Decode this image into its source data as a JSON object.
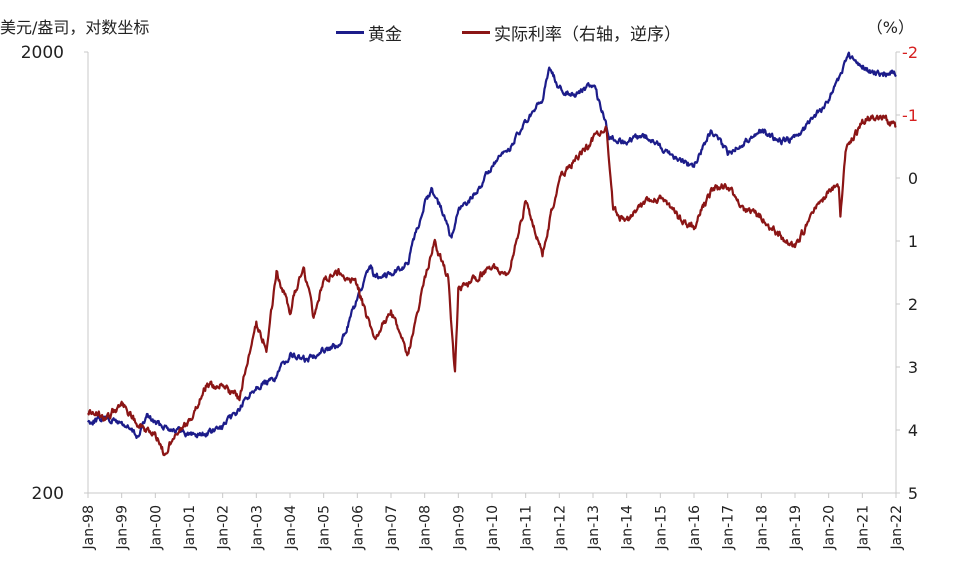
{
  "header": {
    "left_axis_title": "美元/盎司，对数坐标",
    "right_axis_unit": "（%）"
  },
  "legend": [
    {
      "label": "黄金",
      "color": "#1c1c8a"
    },
    {
      "label": "实际利率（右轴，逆序）",
      "color": "#8b1515"
    }
  ],
  "chart_data": {
    "type": "line",
    "x_categories": [
      "Jan-98",
      "Jan-99",
      "Jan-00",
      "Jan-01",
      "Jan-02",
      "Jan-03",
      "Jan-04",
      "Jan-05",
      "Jan-06",
      "Jan-07",
      "Jan-08",
      "Jan-09",
      "Jan-10",
      "Jan-11",
      "Jan-12",
      "Jan-13",
      "Jan-14",
      "Jan-15",
      "Jan-16",
      "Jan-17",
      "Jan-18",
      "Jan-19",
      "Jan-20",
      "Jan-21",
      "Jan-22"
    ],
    "left_axis": {
      "scale": "log",
      "ticks": [
        "200",
        "2000"
      ],
      "range": [
        200,
        2000
      ]
    },
    "right_axis": {
      "inverted": true,
      "ticks": [
        "-2",
        "-1",
        "0",
        "1",
        "2",
        "3",
        "4",
        "5"
      ],
      "range": [
        -2,
        5
      ]
    },
    "series": [
      {
        "name": "黄金",
        "axis": "left",
        "color": "#1c1c8a",
        "x": [
          1998.0,
          1998.5,
          1999.0,
          1999.5,
          1999.75,
          2000.0,
          2000.5,
          2001.0,
          2001.5,
          2002.0,
          2002.5,
          2003.0,
          2003.5,
          2004.0,
          2004.5,
          2005.0,
          2005.5,
          2006.0,
          2006.4,
          2006.5,
          2007.0,
          2007.5,
          2008.0,
          2008.2,
          2008.5,
          2008.8,
          2009.0,
          2009.5,
          2010.0,
          2010.5,
          2011.0,
          2011.5,
          2011.7,
          2012.0,
          2012.5,
          2013.0,
          2013.5,
          2014.0,
          2014.5,
          2015.0,
          2015.5,
          2016.0,
          2016.5,
          2017.0,
          2017.5,
          2018.0,
          2018.5,
          2019.0,
          2019.5,
          2020.0,
          2020.6,
          2021.0,
          2021.5,
          2022.0
        ],
        "y": [
          290,
          296,
          288,
          268,
          300,
          288,
          280,
          272,
          272,
          282,
          310,
          350,
          360,
          412,
          400,
          425,
          430,
          550,
          650,
          620,
          630,
          660,
          900,
          980,
          880,
          750,
          870,
          950,
          1100,
          1200,
          1380,
          1550,
          1850,
          1650,
          1600,
          1690,
          1280,
          1240,
          1300,
          1220,
          1150,
          1100,
          1320,
          1180,
          1250,
          1330,
          1250,
          1280,
          1400,
          1550,
          1950,
          1850,
          1780,
          1800
        ]
      },
      {
        "name": "实际利率（右轴，逆序）",
        "axis": "right",
        "color": "#8b1515",
        "x": [
          1998.0,
          1998.5,
          1999.0,
          1999.5,
          2000.0,
          2000.3,
          2000.6,
          2001.0,
          2001.5,
          2002.0,
          2002.5,
          2003.0,
          2003.3,
          2003.6,
          2004.0,
          2004.4,
          2004.7,
          2005.0,
          2005.5,
          2006.0,
          2006.5,
          2007.0,
          2007.5,
          2008.0,
          2008.3,
          2008.7,
          2008.9,
          2009.0,
          2009.5,
          2010.0,
          2010.5,
          2011.0,
          2011.5,
          2012.0,
          2012.5,
          2013.0,
          2013.4,
          2013.6,
          2014.0,
          2014.5,
          2015.0,
          2015.5,
          2016.0,
          2016.5,
          2017.0,
          2017.5,
          2018.0,
          2018.5,
          2019.0,
          2019.5,
          2020.0,
          2020.3,
          2020.35,
          2020.5,
          2021.0,
          2021.5,
          2022.0
        ],
        "y": [
          3.7,
          3.8,
          3.6,
          3.9,
          4.1,
          4.4,
          4.0,
          3.9,
          3.3,
          3.3,
          3.5,
          2.3,
          2.7,
          1.5,
          2.1,
          1.4,
          2.2,
          1.6,
          1.5,
          1.7,
          2.6,
          2.1,
          2.8,
          1.6,
          1.0,
          1.6,
          3.1,
          1.8,
          1.6,
          1.4,
          1.5,
          0.4,
          1.2,
          0.0,
          -0.3,
          -0.6,
          -0.8,
          0.5,
          0.7,
          0.4,
          0.3,
          0.6,
          0.8,
          0.2,
          0.1,
          0.5,
          0.6,
          0.9,
          1.1,
          0.6,
          0.2,
          0.1,
          0.6,
          -0.4,
          -0.9,
          -1.0,
          -0.8
        ]
      }
    ]
  }
}
